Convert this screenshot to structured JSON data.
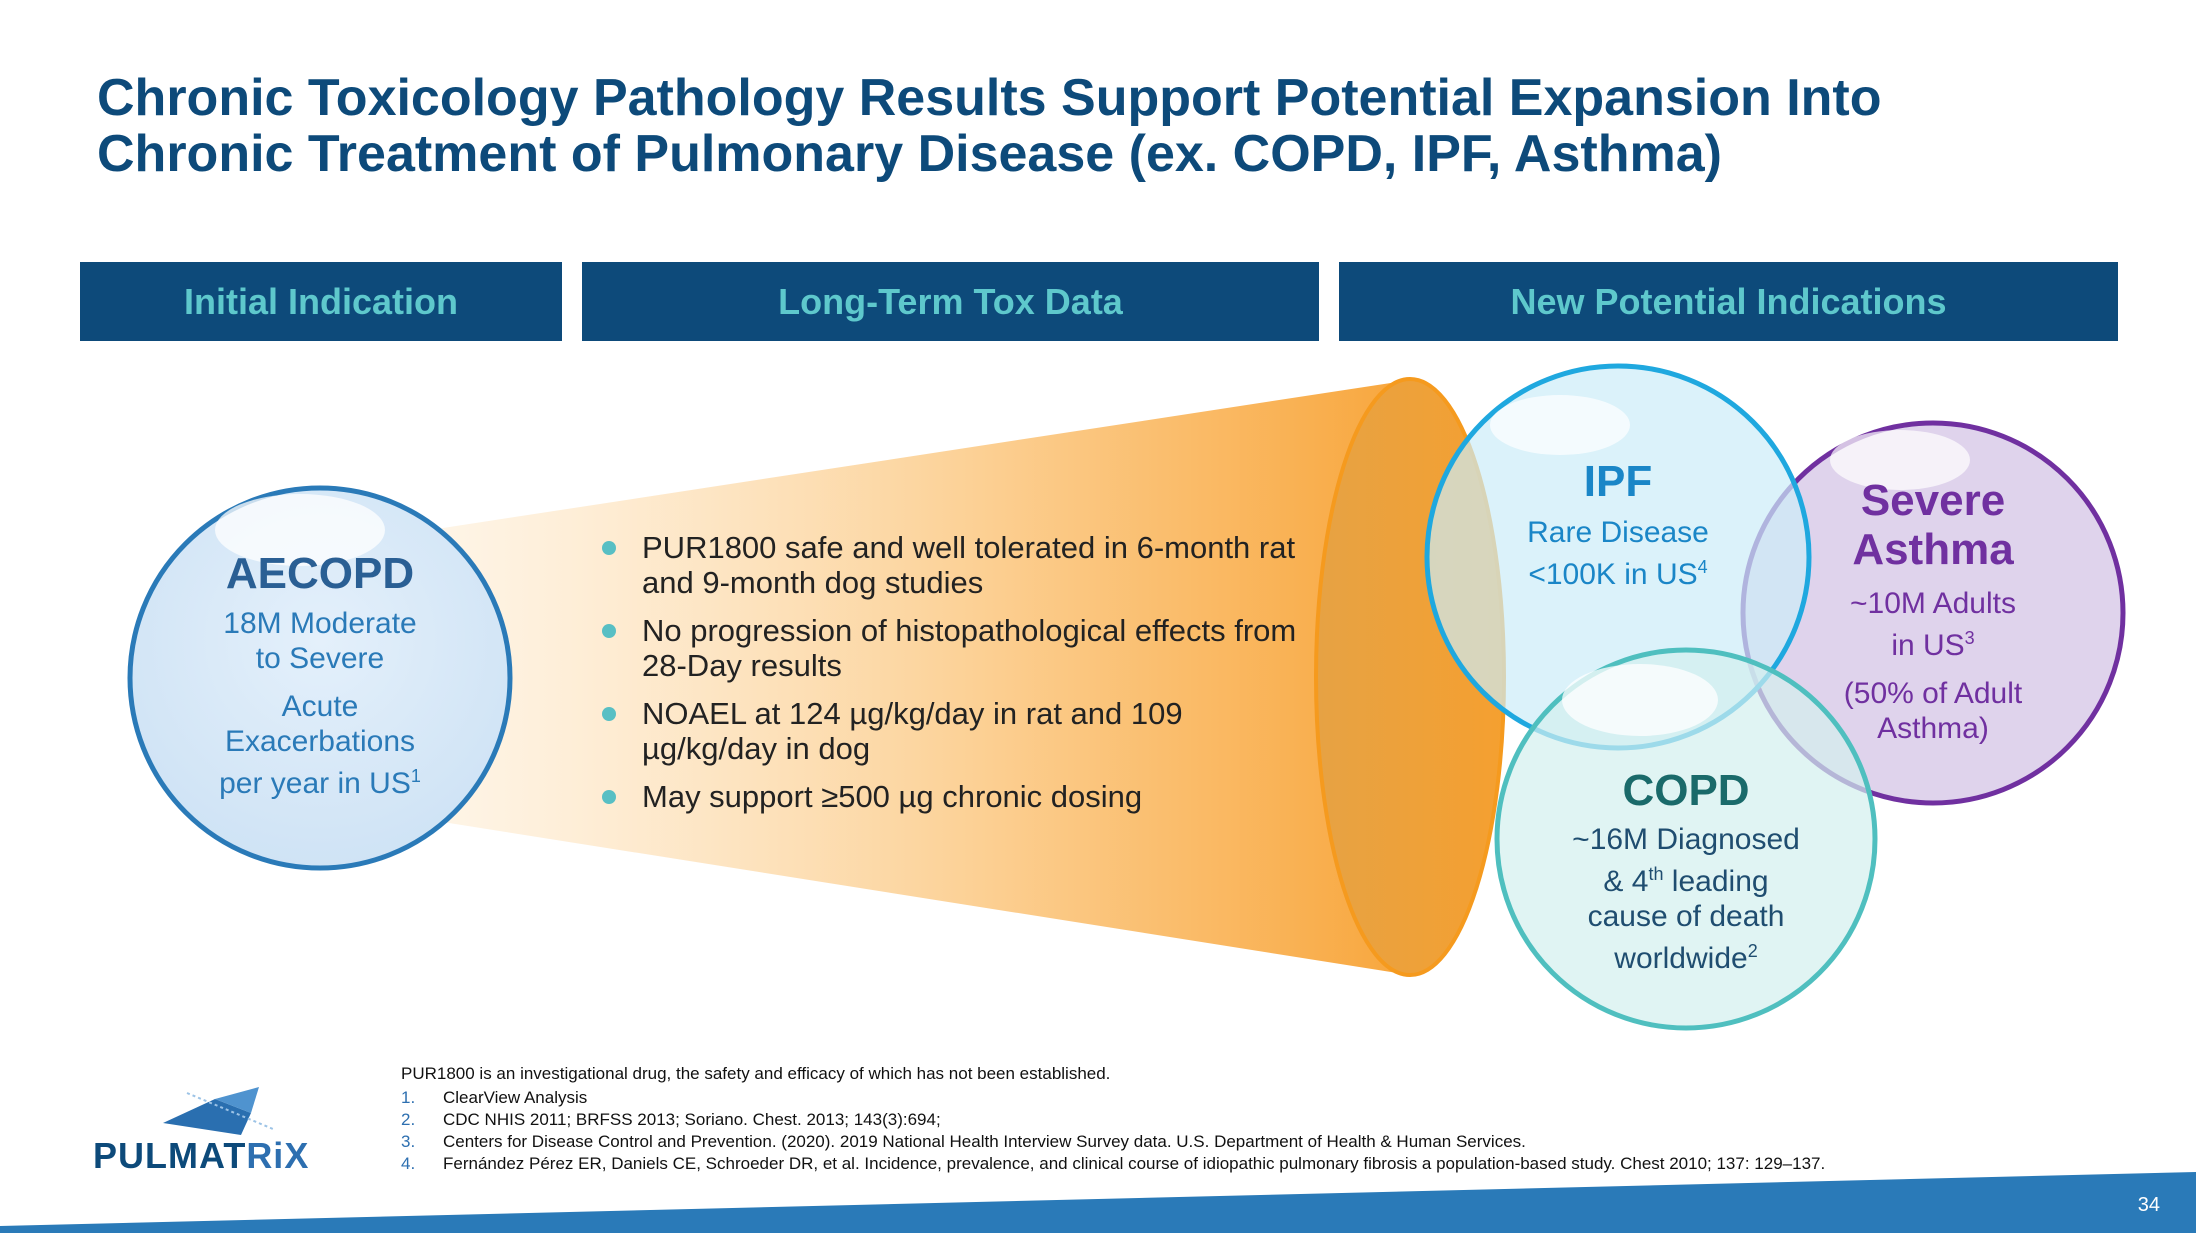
{
  "title": {
    "line1": "Chronic Toxicology Pathology Results Support Potential Expansion Into",
    "line2": "Chronic Treatment of Pulmonary Disease (ex. COPD, IPF, Asthma)"
  },
  "headers": {
    "initial": "Initial Indication",
    "tox": "Long-Term Tox Data",
    "new": "New Potential Indications"
  },
  "aecopd": {
    "title": "AECOPD",
    "line1": "18M Moderate",
    "line2": "to Severe",
    "line3": "Acute",
    "line4": "Exacerbations",
    "line5": "per year in US",
    "ref": "1"
  },
  "tox_bullets": [
    "PUR1800 safe and well tolerated in 6-month rat and 9-month dog studies",
    "No progression of histopathological effects from 28-Day results",
    "NOAEL at 124 µg/kg/day in rat and 109 µg/kg/day in dog",
    "May support ≥500 µg chronic dosing"
  ],
  "ipf": {
    "title": "IPF",
    "line1": "Rare Disease",
    "line2": "<100K in US",
    "ref": "4"
  },
  "asthma": {
    "title1": "Severe",
    "title2": "Asthma",
    "line1": "~10M Adults",
    "line2": "in US",
    "ref": "3",
    "line3": "(50% of Adult",
    "line4": "Asthma)"
  },
  "copd": {
    "title": "COPD",
    "line1": "~16M Diagnosed",
    "line2a": "& 4",
    "sup": "th",
    "line2b": " leading",
    "line3": "cause of death",
    "line4": "worldwide",
    "ref": "2"
  },
  "footer": {
    "disclaimer": "PUR1800 is an investigational drug, the safety and efficacy of which has not been established.",
    "refs": [
      {
        "num": "1.",
        "text": "ClearView Analysis"
      },
      {
        "num": "2.",
        "text": "CDC NHIS 2011; BRFSS 2013; Soriano. Chest. 2013; 143(3):694;"
      },
      {
        "num": "3.",
        "text": "Centers for Disease Control and Prevention. (2020). 2019 National Health Interview Survey data. U.S. Department of Health & Human Services."
      },
      {
        "num": "4.",
        "text": "Fernández Pérez ER, Daniels CE, Schroeder DR, et al. Incidence, prevalence, and clinical course of idiopathic pulmonary fibrosis a population-based study. Chest 2010; 137: 129–137."
      }
    ]
  },
  "logo": {
    "part1": "PULMAT",
    "part2": "RiX"
  },
  "page_number": "34",
  "colors": {
    "navy": "#0d4a7a",
    "teal": "#5ec8cc",
    "blue": "#2a7ab8",
    "purple": "#7030a0",
    "orange": "#f5a030",
    "copd_teal": "#4fbfbf"
  }
}
